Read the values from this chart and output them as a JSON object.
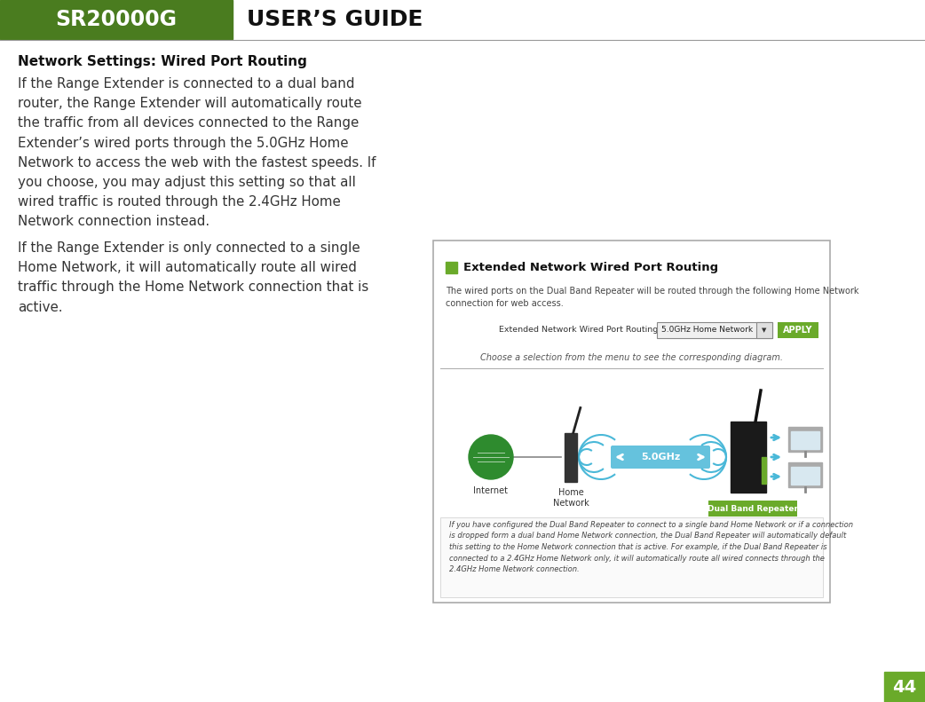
{
  "header_green": "#4a7c1f",
  "header_green_light": "#6aaa2a",
  "header_text_sr": "SR20000G",
  "header_text_guide": "USER’S GUIDE",
  "page_number": "44",
  "page_bg": "#ffffff",
  "title": "Network Settings: Wired Port Routing",
  "paragraph1": "If the Range Extender is connected to a dual band\nrouter, the Range Extender will automatically route\nthe traffic from all devices connected to the Range\nExtender’s wired ports through the 5.0GHz Home\nNetwork to access the web with the fastest speeds. If\nyou choose, you may adjust this setting so that all\nwired traffic is routed through the 2.4GHz Home\nNetwork connection instead.",
  "paragraph2": "If the Range Extender is only connected to a single\nHome Network, it will automatically route all wired\ntraffic through the Home Network connection that is\nactive.",
  "screenshot_header_color": "#6aaa2a",
  "screenshot_header_text": "Extended Network Wired Port Routing",
  "screenshot_desc": "The wired ports on the Dual Band Repeater will be routed through the following Home Network\nconnection for web access.",
  "screenshot_label": "Extended Network Wired Port Routing:",
  "screenshot_dropdown": "5.0GHz Home Network",
  "screenshot_apply_color": "#6aaa2a",
  "screenshot_apply_text": "APPLY",
  "screenshot_choose": "Choose a selection from the menu to see the corresponding diagram.",
  "screenshot_note": "If you have configured the Dual Band Repeater to connect to a single band Home Network or if a connection\nis dropped form a dual band Home Network connection, the Dual Band Repeater will automatically default\nthis setting to the Home Network connection that is active. For example, if the Dual Band Repeater is\nconnected to a 2.4GHz Home Network only, it will automatically route all wired connects through the\n2.4GHz Home Network connection.",
  "internet_label": "Internet",
  "home_network_label": "Home\nNetwork",
  "dual_band_label": "Dual Band Repeater",
  "speed_label": "5.0GHz",
  "green_color": "#6aaa2a",
  "blue_color": "#4ab8d8",
  "internet_color": "#2e8b2e",
  "dark_color": "#222222"
}
